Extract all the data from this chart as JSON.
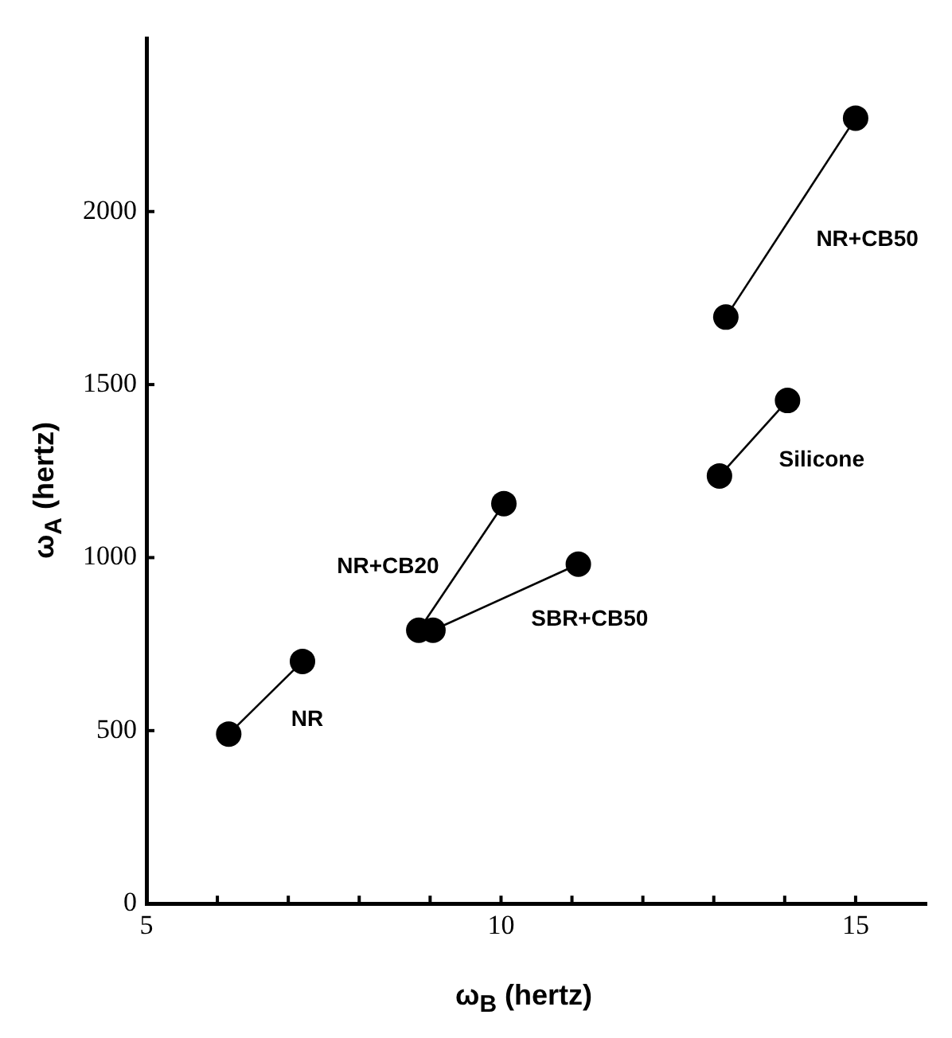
{
  "chart_data": {
    "type": "line",
    "xlabel": "ω$_{B}$  (hertz)",
    "ylabel": "ω$_{A}$  (hertz)",
    "xlim": [
      5,
      16
    ],
    "ylim": [
      0,
      2500
    ],
    "xticks": [
      5,
      {
        "value": 6,
        "label": null
      },
      {
        "value": 7,
        "label": null
      },
      {
        "value": 8,
        "label": null
      },
      {
        "value": 9,
        "label": null
      },
      10,
      {
        "value": 11,
        "label": null
      },
      {
        "value": 12,
        "label": null
      },
      {
        "value": 13,
        "label": null
      },
      {
        "value": 14,
        "label": null
      },
      15
    ],
    "yticks": [
      0,
      500,
      1000,
      1500,
      2000
    ],
    "grid": false,
    "legend": false,
    "marker": "circle",
    "line_style": "solid",
    "series": [
      {
        "name": "NR",
        "color": "#000000",
        "x": [
          6.16,
          7.2
        ],
        "values": [
          490,
          700
        ]
      },
      {
        "name": "NR+CB20",
        "color": "#000000",
        "x": [
          8.84,
          10.04
        ],
        "values": [
          790,
          1156
        ]
      },
      {
        "name": "SBR+CB50",
        "color": "#000000",
        "x": [
          9.04,
          11.09
        ],
        "values": [
          790,
          981
        ]
      },
      {
        "name": "Silicone",
        "color": "#000000",
        "x": [
          13.08,
          14.04
        ],
        "values": [
          1236,
          1454
        ]
      },
      {
        "name": "NR+CB50",
        "color": "#000000",
        "x": [
          13.17,
          15.0
        ],
        "values": [
          1695,
          2270
        ]
      }
    ]
  }
}
